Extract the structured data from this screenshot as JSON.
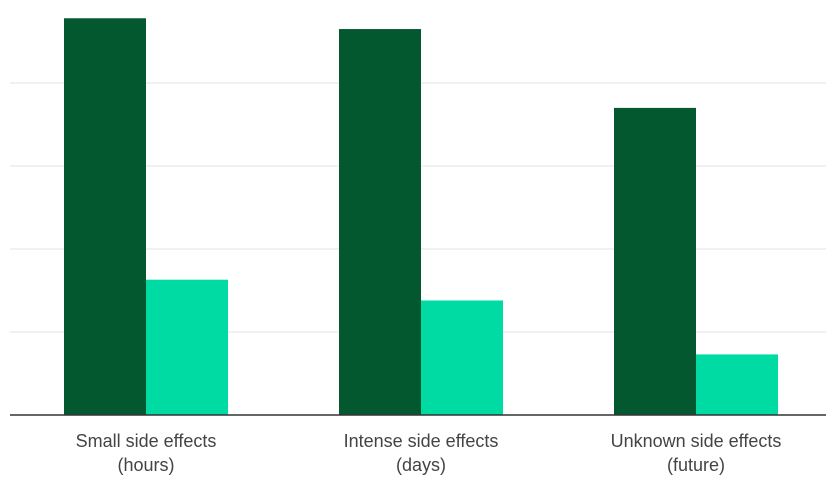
{
  "chart_data": {
    "type": "bar",
    "categories": [
      "Small side effects (hours)",
      "Intense side effects (days)",
      "Unknown side effects (future)"
    ],
    "category_lines": [
      [
        "Small side effects",
        "(hours)"
      ],
      [
        "Intense side effects",
        "(days)"
      ],
      [
        "Unknown side effects",
        "(future)"
      ]
    ],
    "series": [
      {
        "color": "#04582f",
        "values": [
          4.78,
          4.65,
          3.7
        ]
      },
      {
        "color": "#00dba4",
        "values": [
          1.63,
          1.38,
          0.73
        ]
      }
    ],
    "ylim": [
      0,
      5
    ],
    "grid": true,
    "legend": "none",
    "title": "",
    "xlabel": "",
    "ylabel": ""
  }
}
